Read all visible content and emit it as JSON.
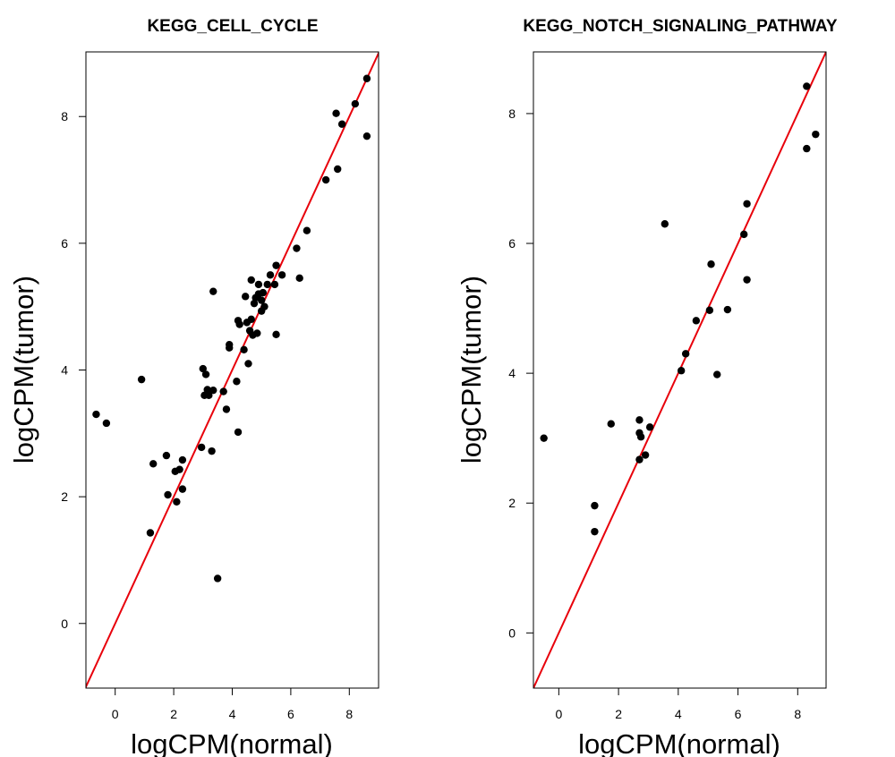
{
  "chart_data": [
    {
      "type": "scatter",
      "title": "KEGG_CELL_CYCLE",
      "xlabel": "logCPM(normal)",
      "ylabel": "logCPM(tumor)",
      "xlim": [
        -1.0,
        9.0
      ],
      "ylim": [
        -1.02,
        9.02
      ],
      "xticks": [
        0,
        2,
        4,
        6,
        8
      ],
      "yticks": [
        0,
        2,
        4,
        6,
        8
      ],
      "grid": false,
      "reference_line": {
        "slope": 1,
        "intercept": 0,
        "color": "#e8000b"
      },
      "point_color": "#000000",
      "points": [
        [
          -0.65,
          3.3
        ],
        [
          -0.3,
          3.16
        ],
        [
          0.9,
          3.85
        ],
        [
          1.2,
          1.43
        ],
        [
          1.3,
          2.52
        ],
        [
          1.75,
          2.65
        ],
        [
          1.8,
          2.03
        ],
        [
          2.05,
          2.4
        ],
        [
          2.1,
          1.92
        ],
        [
          2.2,
          2.43
        ],
        [
          2.3,
          2.12
        ],
        [
          2.3,
          2.58
        ],
        [
          2.95,
          2.78
        ],
        [
          3.0,
          4.02
        ],
        [
          3.05,
          3.6
        ],
        [
          3.1,
          3.93
        ],
        [
          3.15,
          3.69
        ],
        [
          3.2,
          3.6
        ],
        [
          3.3,
          2.72
        ],
        [
          3.35,
          3.68
        ],
        [
          3.35,
          5.24
        ],
        [
          3.5,
          0.71
        ],
        [
          3.7,
          3.66
        ],
        [
          3.8,
          3.38
        ],
        [
          3.9,
          4.35
        ],
        [
          3.9,
          4.4
        ],
        [
          4.15,
          3.82
        ],
        [
          4.2,
          3.02
        ],
        [
          4.2,
          4.78
        ],
        [
          4.25,
          4.72
        ],
        [
          4.4,
          4.32
        ],
        [
          4.45,
          5.16
        ],
        [
          4.5,
          4.75
        ],
        [
          4.55,
          4.1
        ],
        [
          4.6,
          4.62
        ],
        [
          4.65,
          4.8
        ],
        [
          4.65,
          5.42
        ],
        [
          4.7,
          4.55
        ],
        [
          4.75,
          5.05
        ],
        [
          4.8,
          5.14
        ],
        [
          4.85,
          4.58
        ],
        [
          4.9,
          5.2
        ],
        [
          4.9,
          5.35
        ],
        [
          5.0,
          5.1
        ],
        [
          5.0,
          4.93
        ],
        [
          5.05,
          5.22
        ],
        [
          5.1,
          5.0
        ],
        [
          5.2,
          5.35
        ],
        [
          5.3,
          5.5
        ],
        [
          5.45,
          5.35
        ],
        [
          5.5,
          4.56
        ],
        [
          5.5,
          5.65
        ],
        [
          5.7,
          5.5
        ],
        [
          6.2,
          5.92
        ],
        [
          6.3,
          5.45
        ],
        [
          6.55,
          6.2
        ],
        [
          7.2,
          7.0
        ],
        [
          7.55,
          8.05
        ],
        [
          7.6,
          7.17
        ],
        [
          7.75,
          7.88
        ],
        [
          8.2,
          8.2
        ],
        [
          8.6,
          8.6
        ],
        [
          8.6,
          7.69
        ]
      ]
    },
    {
      "type": "scatter",
      "title": "KEGG_NOTCH_SIGNALING_PATHWAY",
      "xlabel": "logCPM(normal)",
      "ylabel": "logCPM(tumor)",
      "xlim": [
        -0.85,
        8.95
      ],
      "ylim": [
        -0.85,
        8.95
      ],
      "xticks": [
        0,
        2,
        4,
        6,
        8
      ],
      "yticks": [
        0,
        2,
        4,
        6,
        8
      ],
      "grid": false,
      "reference_line": {
        "slope": 1,
        "intercept": 0,
        "color": "#e8000b"
      },
      "point_color": "#000000",
      "points": [
        [
          -0.5,
          3.0
        ],
        [
          1.2,
          1.96
        ],
        [
          1.2,
          1.56
        ],
        [
          1.75,
          3.22
        ],
        [
          2.7,
          3.28
        ],
        [
          2.7,
          2.67
        ],
        [
          2.7,
          3.08
        ],
        [
          2.75,
          3.02
        ],
        [
          2.9,
          2.74
        ],
        [
          3.05,
          3.17
        ],
        [
          3.55,
          6.3
        ],
        [
          4.1,
          4.04
        ],
        [
          4.25,
          4.3
        ],
        [
          4.6,
          4.81
        ],
        [
          5.05,
          4.97
        ],
        [
          5.1,
          5.68
        ],
        [
          5.3,
          3.98
        ],
        [
          5.65,
          4.98
        ],
        [
          6.2,
          6.14
        ],
        [
          6.3,
          5.44
        ],
        [
          6.3,
          6.61
        ],
        [
          8.3,
          7.46
        ],
        [
          8.3,
          8.42
        ],
        [
          8.6,
          7.68
        ]
      ]
    }
  ]
}
